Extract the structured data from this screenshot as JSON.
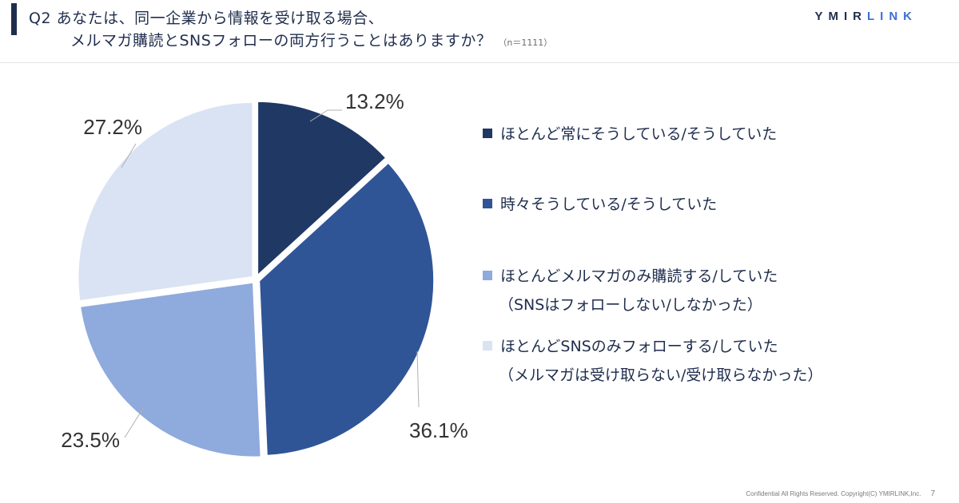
{
  "header": {
    "title_line1": "Q2 あなたは、同一企業から情報を受け取る場合、",
    "title_line2": "メルマガ購読とSNSフォローの両方行うことはありますか？",
    "sample_size": "（n＝1111）",
    "brand_part1": "YMIR",
    "brand_part2": "LINK"
  },
  "chart_data": {
    "type": "pie",
    "slices": [
      {
        "label": "ほとんど常にそうしている/そうしていた",
        "value": 13.2,
        "display": "13.2%",
        "color": "#203864"
      },
      {
        "label": "時々そうしている/そうしていた",
        "value": 36.1,
        "display": "36.1%",
        "color": "#2f5597"
      },
      {
        "label": "ほとんどメルマガのみ購読する/していた（SNSはフォローしない/しなかった）",
        "value": 23.5,
        "display": "23.5%",
        "color": "#8faadc"
      },
      {
        "label": "ほとんどSNSのみフォローする/していた（メルマガは受け取らない/受け取らなかった）",
        "value": 27.2,
        "display": "27.2%",
        "color": "#dae3f3"
      }
    ],
    "legend_position": "right"
  },
  "legend": [
    {
      "line1": "ほとんど常にそうしている/そうしていた",
      "line2": ""
    },
    {
      "line1": "時々そうしている/そうしていた",
      "line2": ""
    },
    {
      "line1": "ほとんどメルマガのみ購読する/していた",
      "line2": "（SNSはフォローしない/しなかった）"
    },
    {
      "line1": "ほとんどSNSのみフォローする/していた",
      "line2": "（メルマガは受け取らない/受け取らなかった）"
    }
  ],
  "footer": {
    "copyright": "Confidential All Rights Reserved. Copyright(C) YMIRLINK,Inc.",
    "page_number": "7"
  }
}
